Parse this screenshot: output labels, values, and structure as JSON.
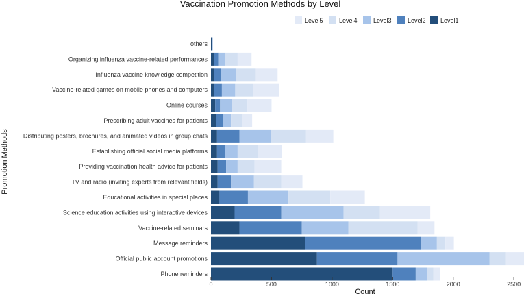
{
  "chart_data": {
    "type": "bar",
    "orientation": "horizontal",
    "stacked": true,
    "title": "Vaccination Promotion Methods by Level",
    "xlabel": "Count",
    "ylabel": "Promotion Methods",
    "xlim": [
      0,
      2550
    ],
    "xticks": [
      0,
      500,
      1000,
      1500,
      2000,
      2500
    ],
    "grid": false,
    "legend_position": "top-right",
    "categories": [
      "Phone reminders",
      "Official public account promotions",
      "Message reminders",
      "Vaccine-related seminars",
      "Science education activities using interactive devices",
      "Educational activities in special places",
      "TV and radio (inviting experts from relevant fields)",
      "Providing vaccination health advice for patients",
      "Establishing official social media platforms",
      "Distributing posters, brochures, and animated videos in group chats",
      "Prescribing adult vaccines for patients",
      "Online courses",
      "Vaccine-related games on mobile phones and computers",
      "Influenza vaccine knowledge competition",
      "Organizing influenza vaccine-related performances",
      "others"
    ],
    "series": [
      {
        "name": "Level1",
        "color": "#234e7a",
        "values": [
          1500,
          875,
          775,
          235,
          195,
          70,
          55,
          55,
          50,
          50,
          45,
          35,
          25,
          25,
          25,
          10
        ]
      },
      {
        "name": "Level2",
        "color": "#4f81bd",
        "values": [
          190,
          665,
          960,
          515,
          385,
          235,
          110,
          70,
          65,
          185,
          55,
          40,
          65,
          55,
          35,
          3
        ]
      },
      {
        "name": "Level3",
        "color": "#a7c4ea",
        "values": [
          95,
          760,
          130,
          385,
          515,
          335,
          190,
          95,
          105,
          260,
          65,
          95,
          110,
          125,
          55,
          2
        ]
      },
      {
        "name": "Level4",
        "color": "#d3e0f2",
        "values": [
          50,
          130,
          70,
          570,
          300,
          345,
          225,
          140,
          170,
          290,
          90,
          130,
          150,
          165,
          105,
          1
        ]
      },
      {
        "name": "Level5",
        "color": "#e3eaf7",
        "values": [
          55,
          170,
          70,
          140,
          415,
          285,
          175,
          220,
          195,
          225,
          85,
          200,
          210,
          180,
          115,
          1
        ]
      }
    ]
  }
}
